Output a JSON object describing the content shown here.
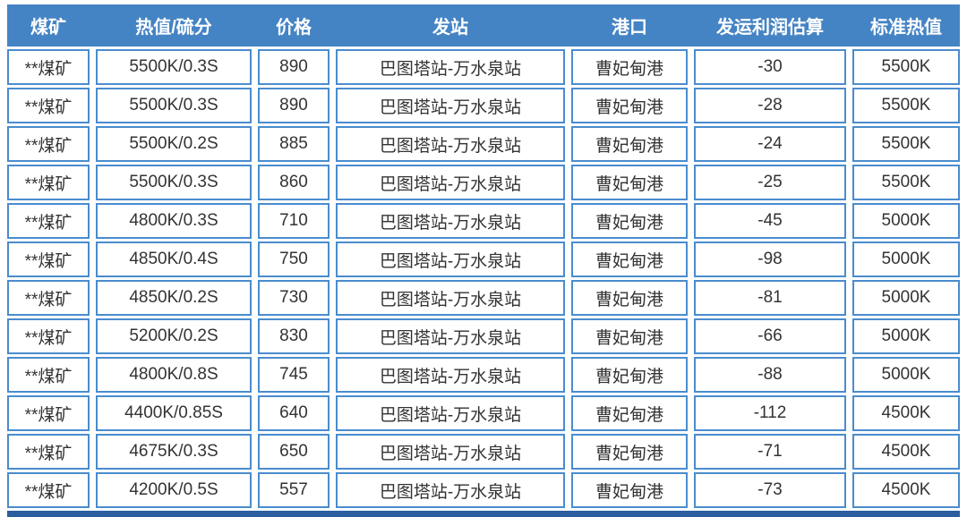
{
  "colors": {
    "header_bg": "#4584c4",
    "cell_border": "#4a8cce",
    "bottom_bar": "#2b5e9e",
    "header_text": "#ffffff",
    "body_text": "#333333"
  },
  "chart_data": {
    "type": "table",
    "columns": [
      {
        "key": "mine",
        "label": "煤矿"
      },
      {
        "key": "heat-sulfur",
        "label": "热值/硫分"
      },
      {
        "key": "price",
        "label": "价格"
      },
      {
        "key": "departure-station",
        "label": "发站"
      },
      {
        "key": "port",
        "label": "港口"
      },
      {
        "key": "shipping-profit-estimate",
        "label": "发运利润估算"
      },
      {
        "key": "standard-heat-value",
        "label": "标准热值"
      }
    ],
    "rows": [
      [
        "**煤矿",
        "5500K/0.3S",
        "890",
        "巴图塔站-万水泉站",
        "曹妃甸港",
        "-30",
        "5500K"
      ],
      [
        "**煤矿",
        "5500K/0.3S",
        "890",
        "巴图塔站-万水泉站",
        "曹妃甸港",
        "-28",
        "5500K"
      ],
      [
        "**煤矿",
        "5500K/0.2S",
        "885",
        "巴图塔站-万水泉站",
        "曹妃甸港",
        "-24",
        "5500K"
      ],
      [
        "**煤矿",
        "5500K/0.3S",
        "860",
        "巴图塔站-万水泉站",
        "曹妃甸港",
        "-25",
        "5500K"
      ],
      [
        "**煤矿",
        "4800K/0.3S",
        "710",
        "巴图塔站-万水泉站",
        "曹妃甸港",
        "-45",
        "5000K"
      ],
      [
        "**煤矿",
        "4850K/0.4S",
        "750",
        "巴图塔站-万水泉站",
        "曹妃甸港",
        "-98",
        "5000K"
      ],
      [
        "**煤矿",
        "4850K/0.2S",
        "730",
        "巴图塔站-万水泉站",
        "曹妃甸港",
        "-81",
        "5000K"
      ],
      [
        "**煤矿",
        "5200K/0.2S",
        "830",
        "巴图塔站-万水泉站",
        "曹妃甸港",
        "-66",
        "5000K"
      ],
      [
        "**煤矿",
        "4800K/0.8S",
        "745",
        "巴图塔站-万水泉站",
        "曹妃甸港",
        "-88",
        "5000K"
      ],
      [
        "**煤矿",
        "4400K/0.85S",
        "640",
        "巴图塔站-万水泉站",
        "曹妃甸港",
        "-112",
        "4500K"
      ],
      [
        "**煤矿",
        "4675K/0.3S",
        "650",
        "巴图塔站-万水泉站",
        "曹妃甸港",
        "-71",
        "4500K"
      ],
      [
        "**煤矿",
        "4200K/0.5S",
        "557",
        "巴图塔站-万水泉站",
        "曹妃甸港",
        "-73",
        "4500K"
      ]
    ]
  }
}
